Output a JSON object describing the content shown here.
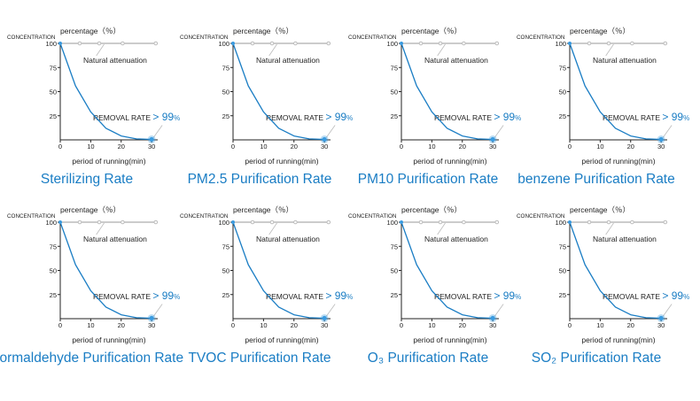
{
  "colors": {
    "curve": "#1a7dc4",
    "axis": "#222222",
    "guide": "#bbbbbb",
    "caption": "#1a7dc4",
    "dot": "#3a9be0"
  },
  "common": {
    "concentration_label": "CONCENTRATION",
    "percentage_label": "percentage（％）",
    "natural_label": "Natural attenuation",
    "removal_label": "REMOVAL RATE",
    "removal_value": "> 99",
    "removal_unit": "%",
    "xlabel": "period of running(min)"
  },
  "chart_data": [
    {
      "type": "line",
      "title": "Sterilizing Rate",
      "x": [
        0,
        5,
        10,
        15,
        20,
        25,
        30
      ],
      "y": [
        100,
        56,
        29,
        12,
        4,
        1,
        0.5
      ],
      "xticks": [
        0,
        10,
        20,
        30
      ],
      "yticks": [
        25,
        50,
        75,
        100
      ],
      "xlim": [
        0,
        32
      ],
      "ylim": [
        0,
        100
      ],
      "xlabel": "period of running(min)",
      "ylabel": "CONCENTRATION",
      "annotations": [
        "percentage（％）",
        "Natural attenuation",
        "REMOVAL RATE > 99%"
      ]
    },
    {
      "type": "line",
      "title": "PM2.5 Purification Rate",
      "x": [
        0,
        5,
        10,
        15,
        20,
        25,
        30
      ],
      "y": [
        100,
        56,
        29,
        12,
        4,
        1,
        0.5
      ],
      "xticks": [
        0,
        10,
        20,
        30
      ],
      "yticks": [
        25,
        50,
        75,
        100
      ],
      "xlim": [
        0,
        32
      ],
      "ylim": [
        0,
        100
      ],
      "xlabel": "period of running(min)",
      "ylabel": "CONCENTRATION",
      "annotations": [
        "percentage（％）",
        "Natural attenuation",
        "REMOVAL RATE > 99%"
      ]
    },
    {
      "type": "line",
      "title": "PM10 Purification Rate",
      "x": [
        0,
        5,
        10,
        15,
        20,
        25,
        30
      ],
      "y": [
        100,
        56,
        29,
        12,
        4,
        1,
        0.5
      ],
      "xticks": [
        0,
        10,
        20,
        30
      ],
      "yticks": [
        25,
        50,
        75,
        100
      ],
      "xlim": [
        0,
        32
      ],
      "ylim": [
        0,
        100
      ],
      "xlabel": "period of running(min)",
      "ylabel": "CONCENTRATION",
      "annotations": [
        "percentage（％）",
        "Natural attenuation",
        "REMOVAL RATE > 99%"
      ]
    },
    {
      "type": "line",
      "title": "benzene Purification Rate",
      "x": [
        0,
        5,
        10,
        15,
        20,
        25,
        30
      ],
      "y": [
        100,
        56,
        29,
        12,
        4,
        1,
        0.5
      ],
      "xticks": [
        0,
        10,
        20,
        30
      ],
      "yticks": [
        25,
        50,
        75,
        100
      ],
      "xlim": [
        0,
        32
      ],
      "ylim": [
        0,
        100
      ],
      "xlabel": "period of running(min)",
      "ylabel": "CONCENTRATION",
      "annotations": [
        "percentage（％）",
        "Natural attenuation",
        "REMOVAL RATE > 99%"
      ]
    },
    {
      "type": "line",
      "title": "Formaldehyde Purification Rate",
      "x": [
        0,
        5,
        10,
        15,
        20,
        25,
        30
      ],
      "y": [
        100,
        56,
        29,
        12,
        4,
        1,
        0.5
      ],
      "xticks": [
        0,
        10,
        20,
        30
      ],
      "yticks": [
        25,
        50,
        75,
        100
      ],
      "xlim": [
        0,
        32
      ],
      "ylim": [
        0,
        100
      ],
      "xlabel": "period of running(min)",
      "ylabel": "CONCENTRATION",
      "annotations": [
        "percentage（％）",
        "Natural attenuation",
        "REMOVAL RATE > 99%"
      ]
    },
    {
      "type": "line",
      "title": "TVOC Purification Rate",
      "x": [
        0,
        5,
        10,
        15,
        20,
        25,
        30
      ],
      "y": [
        100,
        56,
        29,
        12,
        4,
        1,
        0.5
      ],
      "xticks": [
        0,
        10,
        20,
        30
      ],
      "yticks": [
        25,
        50,
        75,
        100
      ],
      "xlim": [
        0,
        32
      ],
      "ylim": [
        0,
        100
      ],
      "xlabel": "period of running(min)",
      "ylabel": "CONCENTRATION",
      "annotations": [
        "percentage（％）",
        "Natural attenuation",
        "REMOVAL RATE > 99%"
      ]
    },
    {
      "type": "line",
      "title": "O₃ Purification Rate",
      "x": [
        0,
        5,
        10,
        15,
        20,
        25,
        30
      ],
      "y": [
        100,
        56,
        29,
        12,
        4,
        1,
        0.5
      ],
      "xticks": [
        0,
        10,
        20,
        30
      ],
      "yticks": [
        25,
        50,
        75,
        100
      ],
      "xlim": [
        0,
        32
      ],
      "ylim": [
        0,
        100
      ],
      "xlabel": "period of running(min)",
      "ylabel": "CONCENTRATION",
      "annotations": [
        "percentage（％）",
        "Natural attenuation",
        "REMOVAL RATE > 99%"
      ]
    },
    {
      "type": "line",
      "title": "SO₂ Purification Rate",
      "x": [
        0,
        5,
        10,
        15,
        20,
        25,
        30
      ],
      "y": [
        100,
        56,
        29,
        12,
        4,
        1,
        0.5
      ],
      "xticks": [
        0,
        10,
        20,
        30
      ],
      "yticks": [
        25,
        50,
        75,
        100
      ],
      "xlim": [
        0,
        32
      ],
      "ylim": [
        0,
        100
      ],
      "xlabel": "period of running(min)",
      "ylabel": "CONCENTRATION",
      "annotations": [
        "percentage（％）",
        "Natural attenuation",
        "REMOVAL RATE > 99%"
      ]
    }
  ]
}
